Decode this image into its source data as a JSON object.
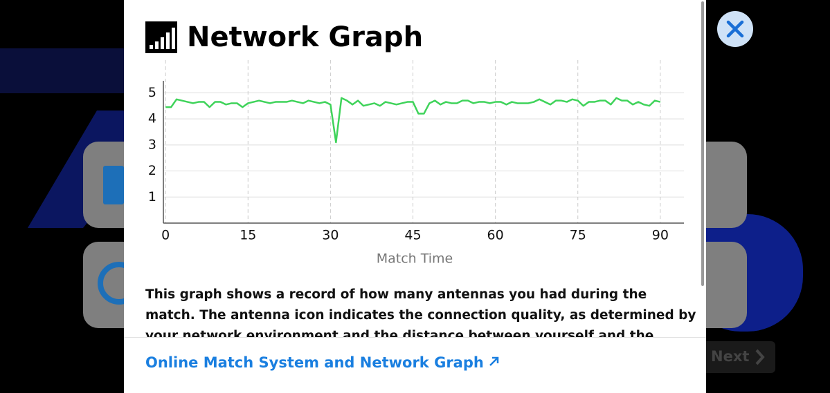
{
  "header": {
    "title": "Network Graph"
  },
  "chart_data": {
    "type": "line",
    "x_label": "Match Time",
    "x": [
      0,
      1,
      2,
      3,
      4,
      5,
      6,
      7,
      8,
      9,
      10,
      11,
      12,
      13,
      14,
      15,
      16,
      17,
      18,
      19,
      20,
      21,
      22,
      23,
      24,
      25,
      26,
      27,
      28,
      29,
      30,
      31,
      32,
      33,
      34,
      35,
      36,
      37,
      38,
      39,
      40,
      41,
      42,
      43,
      44,
      45,
      46,
      47,
      48,
      49,
      50,
      51,
      52,
      53,
      54,
      55,
      56,
      57,
      58,
      59,
      60,
      61,
      62,
      63,
      64,
      65,
      66,
      67,
      68,
      69,
      70,
      71,
      72,
      73,
      74,
      75,
      76,
      77,
      78,
      79,
      80,
      81,
      82,
      83,
      84,
      85,
      86,
      87,
      88,
      89,
      90
    ],
    "series": [
      {
        "name": "Antennas",
        "color": "#3fd35a",
        "values": [
          4.45,
          4.45,
          4.75,
          4.7,
          4.65,
          4.6,
          4.65,
          4.65,
          4.45,
          4.65,
          4.65,
          4.55,
          4.6,
          4.6,
          4.45,
          4.6,
          4.65,
          4.7,
          4.65,
          4.6,
          4.65,
          4.65,
          4.65,
          4.7,
          4.65,
          4.6,
          4.7,
          4.65,
          4.6,
          4.65,
          4.55,
          3.1,
          4.8,
          4.7,
          4.55,
          4.7,
          4.5,
          4.55,
          4.6,
          4.5,
          4.65,
          4.6,
          4.55,
          4.6,
          4.65,
          4.65,
          4.2,
          4.2,
          4.6,
          4.7,
          4.55,
          4.65,
          4.6,
          4.6,
          4.7,
          4.7,
          4.6,
          4.65,
          4.65,
          4.6,
          4.65,
          4.65,
          4.55,
          4.65,
          4.6,
          4.6,
          4.6,
          4.65,
          4.75,
          4.65,
          4.55,
          4.7,
          4.7,
          4.65,
          4.75,
          4.7,
          4.5,
          4.65,
          4.65,
          4.7,
          4.7,
          4.55,
          4.8,
          4.7,
          4.7,
          4.55,
          4.65,
          4.55,
          4.5,
          4.7,
          4.65
        ]
      }
    ],
    "xlim": [
      -0.4,
      94.3
    ],
    "xticks": [
      0,
      15,
      30,
      45,
      60,
      75,
      90
    ],
    "ylim": [
      0,
      5.46
    ],
    "yticks": [
      1,
      2,
      3,
      4,
      5
    ],
    "grid": true
  },
  "description": "This graph shows a record of how many antennas you had during the match. The antenna icon indicates the connection quality, as determined by your network environment and the distance between yourself and the servers or your opponent.",
  "link": "Online Match System and Network Graph",
  "next_button": "Next"
}
